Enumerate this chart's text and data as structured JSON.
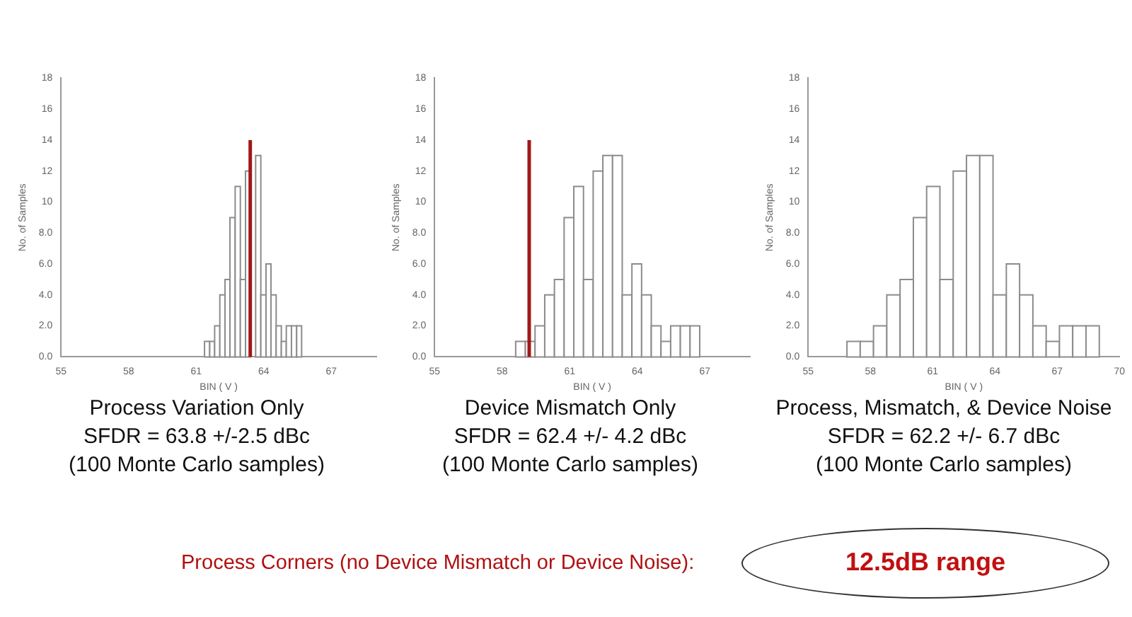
{
  "chart_data": [
    {
      "type": "histogram",
      "xlabel": "BIN ( V )",
      "ylabel": "No. of Samples",
      "color": "#8c8c8c",
      "bins": [
        61.37,
        61.6,
        61.82,
        62.05,
        62.28,
        62.5,
        62.73,
        62.96,
        63.19,
        63.41,
        63.64,
        63.87,
        64.1,
        64.32,
        64.55,
        64.78,
        65.0,
        65.23,
        65.46,
        65.68
      ],
      "values": [
        1,
        1,
        2,
        4,
        5,
        9,
        11,
        5,
        12,
        null,
        13,
        4,
        6,
        4,
        2,
        1,
        2,
        2,
        2
      ],
      "xlim": [
        55,
        69
      ],
      "xticks": [
        55,
        58,
        61,
        64,
        67
      ],
      "ylim": [
        0,
        18
      ],
      "yticks": [
        {
          "value": 0,
          "label": "0.0"
        },
        {
          "value": 2,
          "label": "2.0"
        },
        {
          "value": 4,
          "label": "4.0"
        },
        {
          "value": 6,
          "label": "6.0"
        },
        {
          "value": 8,
          "label": "8.0"
        },
        10,
        12,
        14,
        16,
        18
      ],
      "ref_lines": [
        {
          "axis": "x",
          "value": 63.4,
          "color": "#a01818"
        }
      ],
      "annotations": [
        "Process Variation Only",
        "SFDR = 63.8 +/-2.5 dBc",
        "(100 Monte Carlo samples)"
      ]
    },
    {
      "type": "histogram",
      "xlabel": "BIN ( V )",
      "ylabel": "No. of Samples",
      "color": "#8c8c8c",
      "bins": [
        58.6,
        59.03,
        59.46,
        59.89,
        60.32,
        60.75,
        61.18,
        61.61,
        62.04,
        62.47,
        62.9,
        63.33,
        63.76,
        64.19,
        64.62,
        65.05,
        65.48,
        65.91,
        66.34,
        66.77
      ],
      "values": [
        1,
        1,
        2,
        4,
        5,
        9,
        11,
        5,
        12,
        13,
        13,
        4,
        6,
        4,
        2,
        1,
        2,
        2,
        2
      ],
      "xlim": [
        55,
        69
      ],
      "xticks": [
        55,
        58,
        61,
        64,
        67
      ],
      "ylim": [
        0,
        18
      ],
      "yticks": [
        {
          "value": 0,
          "label": "0.0"
        },
        {
          "value": 2,
          "label": "2.0"
        },
        {
          "value": 4,
          "label": "4.0"
        },
        {
          "value": 6,
          "label": "6.0"
        },
        {
          "value": 8,
          "label": "8.0"
        },
        10,
        12,
        14,
        16,
        18
      ],
      "ref_lines": [
        {
          "axis": "x",
          "value": 59.2,
          "color": "#a01818"
        }
      ],
      "annotations": [
        "Device Mismatch Only",
        "SFDR = 62.4 +/- 4.2 dBc",
        "(100 Monte Carlo samples)"
      ]
    },
    {
      "type": "histogram",
      "xlabel": "BIN ( V )",
      "ylabel": "No. of Samples",
      "color": "#8c8c8c",
      "bins": [
        56.87,
        57.51,
        58.15,
        58.79,
        59.43,
        60.07,
        60.71,
        61.35,
        61.99,
        62.63,
        63.27,
        63.91,
        64.55,
        65.19,
        65.83,
        66.47,
        67.11,
        67.75,
        68.39,
        69.03
      ],
      "values": [
        1,
        1,
        2,
        4,
        5,
        9,
        11,
        5,
        12,
        13,
        13,
        4,
        6,
        4,
        2,
        1,
        2,
        2,
        2
      ],
      "xlim": [
        55,
        70
      ],
      "xticks": [
        55,
        58,
        61,
        64,
        67,
        70
      ],
      "ylim": [
        0,
        18
      ],
      "yticks": [
        {
          "value": 0,
          "label": "0.0"
        },
        {
          "value": 2,
          "label": "2.0"
        },
        {
          "value": 4,
          "label": "4.0"
        },
        {
          "value": 6,
          "label": "6.0"
        },
        {
          "value": 8,
          "label": "8.0"
        },
        10,
        12,
        14,
        16,
        18
      ],
      "annotations": [
        "Process, Mismatch, & Device Noise",
        "SFDR = 62.2 +/- 6.7 dBc",
        "(100 Monte Carlo samples)"
      ]
    },
    {
      "type": "other",
      "annotations": [
        "Process Corners (no Device Mismatch or Device Noise):",
        "12.5dB range"
      ]
    }
  ]
}
